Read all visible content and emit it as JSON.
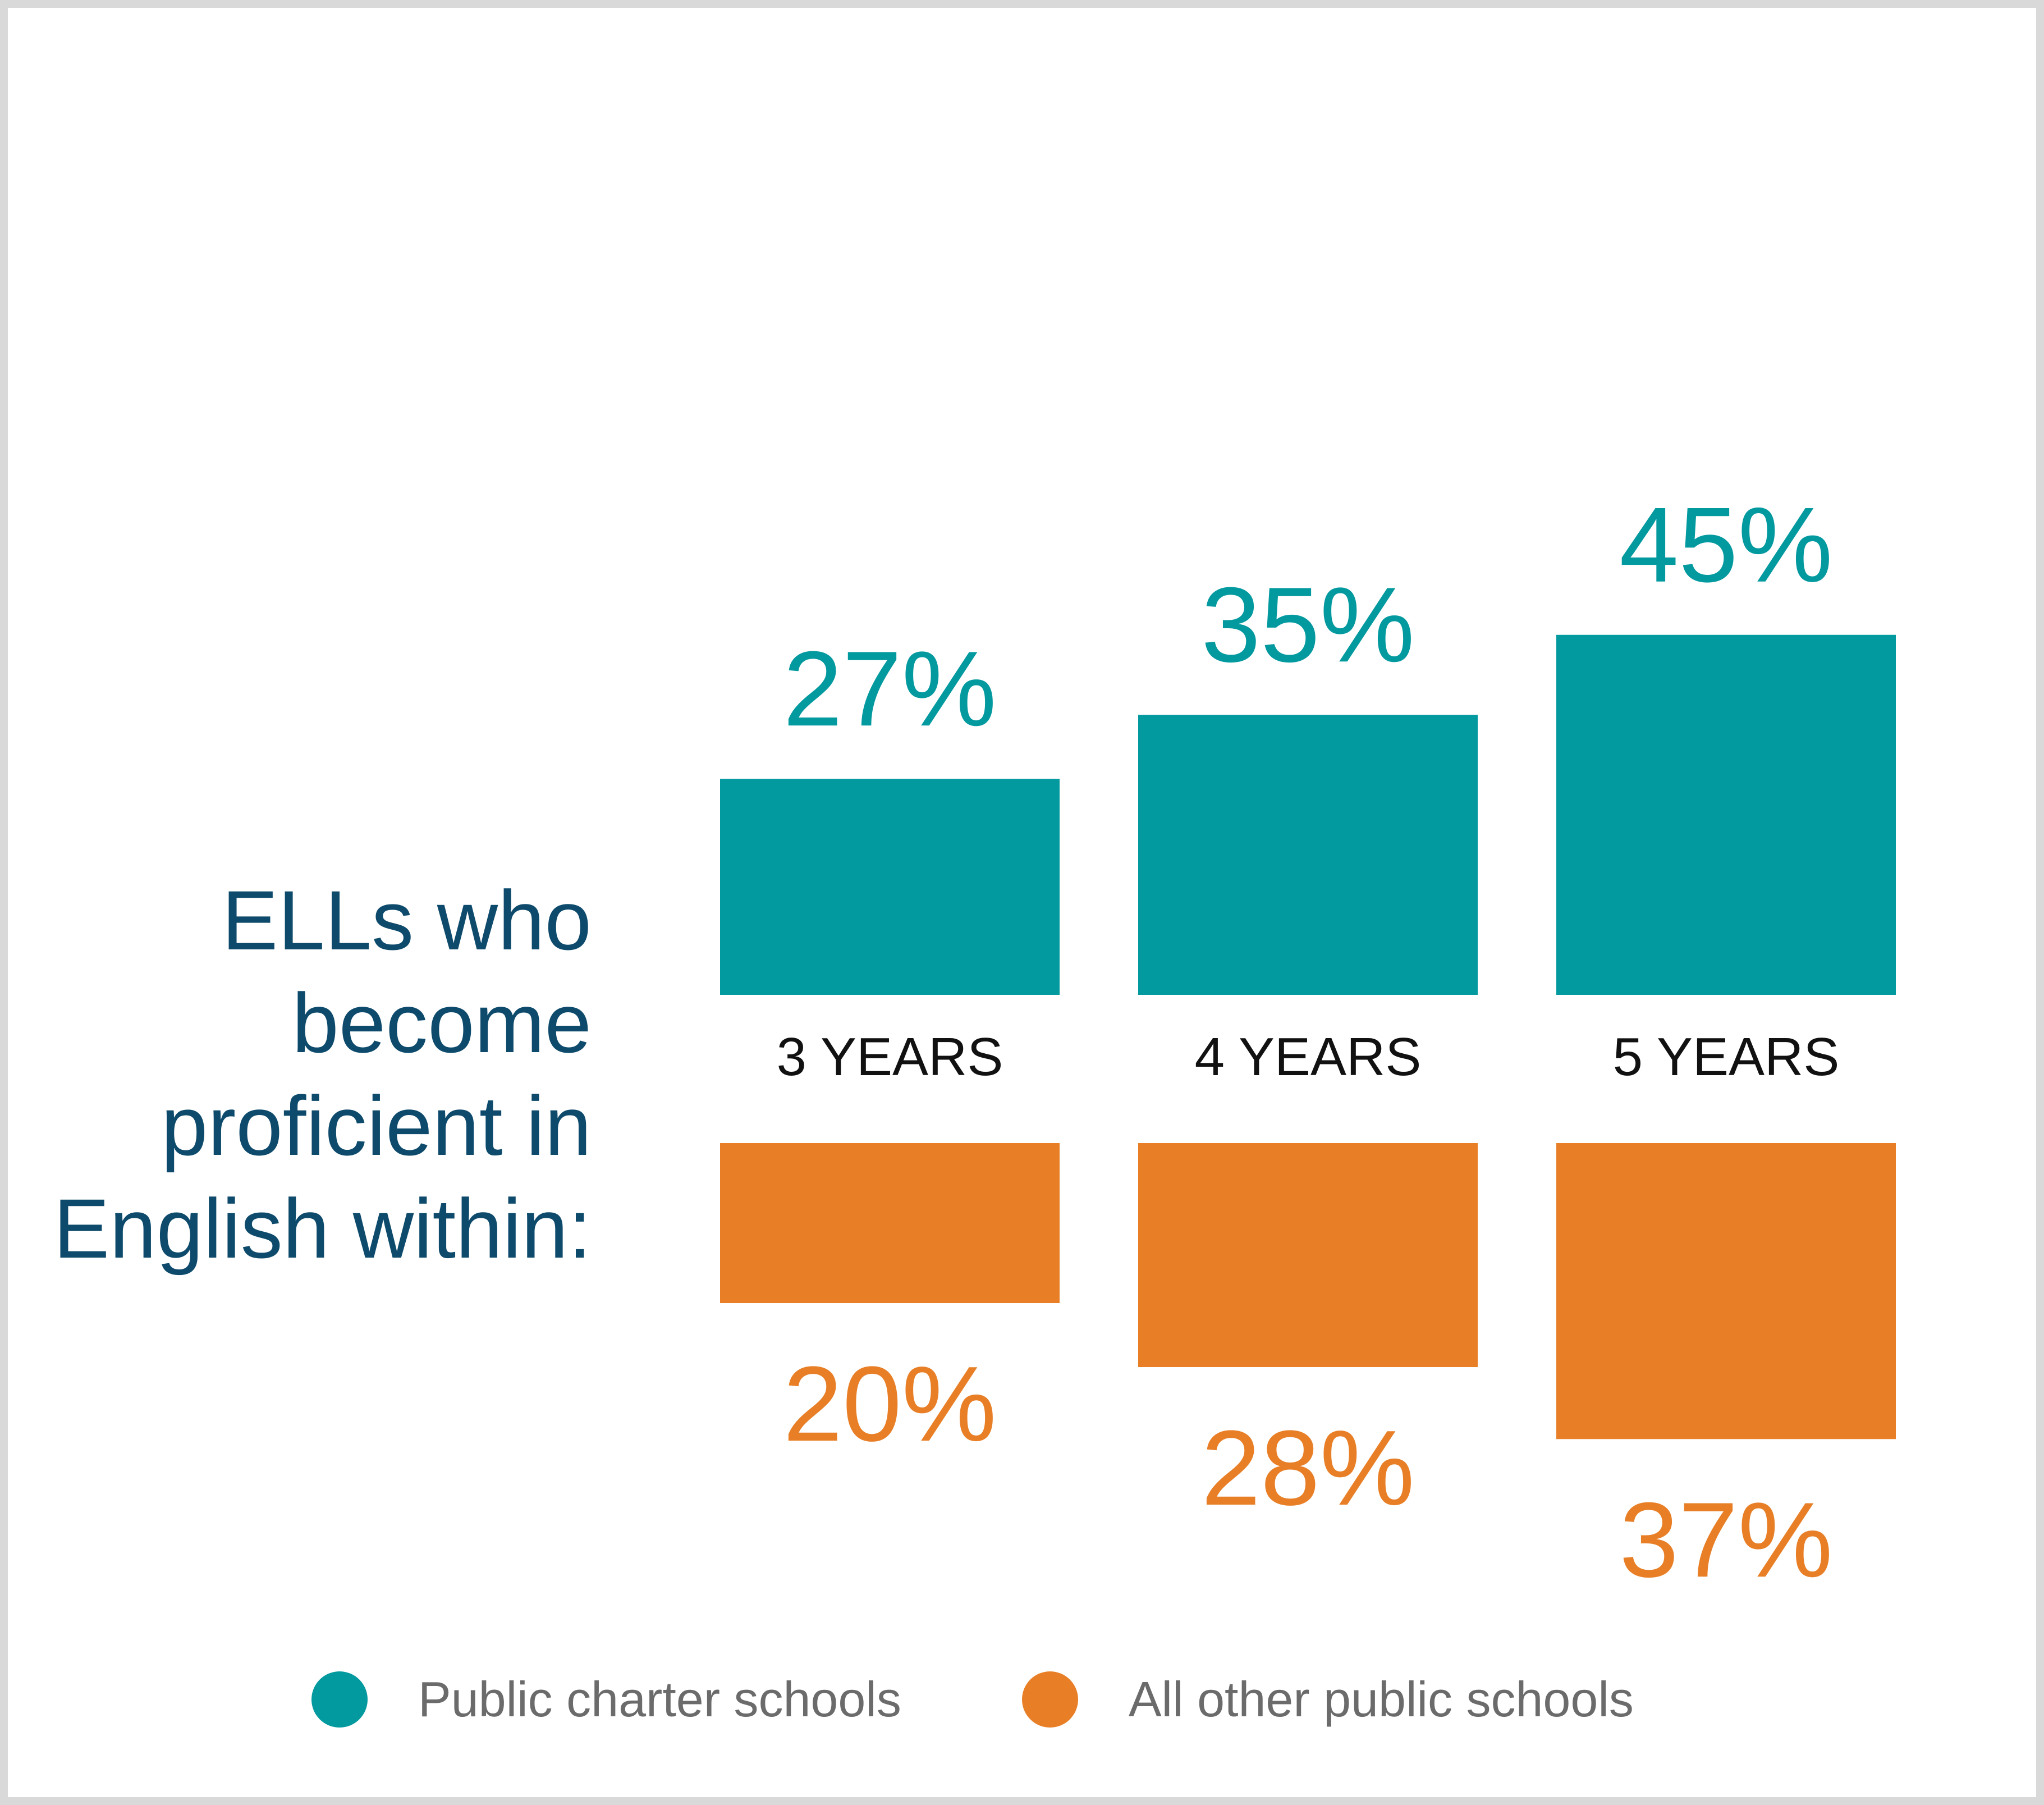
{
  "question": "ELLs who\nbecome\nproficient in\nEnglish within:",
  "colors": {
    "teal": "#02999f",
    "orange": "#e87f27"
  },
  "chart_data": {
    "type": "bar",
    "layout": "diverging, teal bars above and orange bars below the category labels",
    "categories": [
      "3 YEARS",
      "4 YEARS",
      "5 YEARS"
    ],
    "series": [
      {
        "name": "Public charter schools",
        "values": [
          27,
          35,
          45
        ],
        "labels": [
          "27%",
          "35%",
          "45%"
        ],
        "color": "#02999f"
      },
      {
        "name": "All other public schools",
        "values": [
          20,
          28,
          37
        ],
        "labels": [
          "20%",
          "28%",
          "37%"
        ],
        "color": "#e87f27"
      }
    ],
    "unit": "%",
    "grid": false,
    "axes_visible": false,
    "legend_position": "bottom"
  },
  "legend": [
    {
      "label": "Public charter schools",
      "color_key": "teal"
    },
    {
      "label": "All other public schools",
      "color_key": "orange"
    }
  ]
}
